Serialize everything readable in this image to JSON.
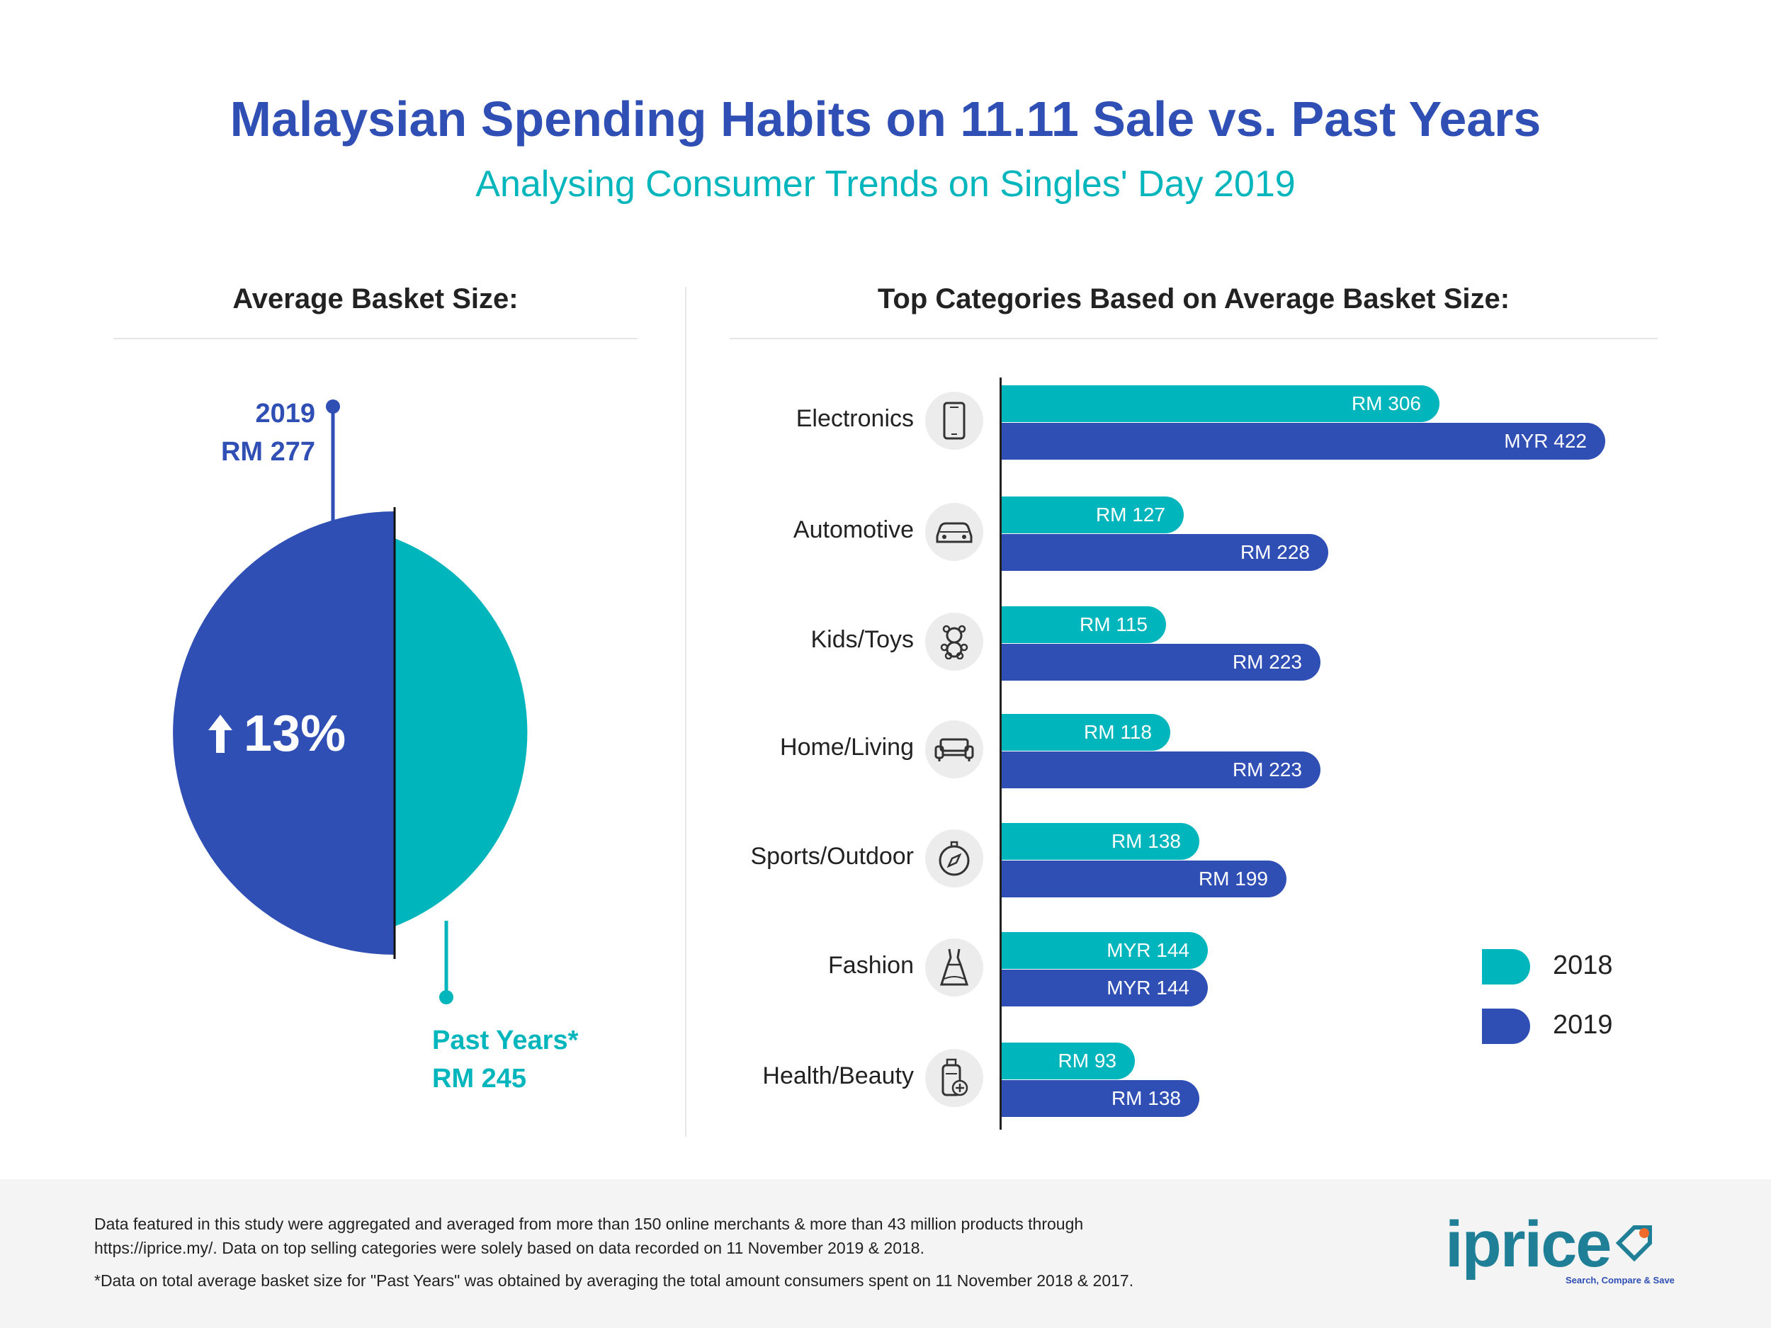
{
  "header": {
    "title": "Malaysian Spending Habits on 11.11 Sale vs. Past Years",
    "subtitle": "Analysing Consumer Trends on Singles' Day 2019"
  },
  "colors": {
    "teal": "#00b5bc",
    "blue": "#2f4fb5",
    "dark": "#222222"
  },
  "basket": {
    "heading": "Average Basket Size:",
    "label_2019_year": "2019",
    "label_2019_value": "RM 277",
    "label_past_year": "Past Years*",
    "label_past_value": "RM 245",
    "growth_text": "13%",
    "growth_icon": "arrow-up-icon"
  },
  "categories_section": {
    "heading": "Top Categories Based on Average Basket Size:"
  },
  "chart_data": [
    {
      "type": "pie",
      "title": "Average Basket Size:",
      "slices": [
        {
          "name": "2019",
          "label": "RM 277",
          "value": 277,
          "color": "#2f4fb5"
        },
        {
          "name": "Past Years*",
          "label": "RM 245",
          "value": 245,
          "color": "#00b5bc"
        }
      ],
      "annotation": "13%"
    },
    {
      "type": "bar",
      "orientation": "horizontal",
      "title": "Top Categories Based on Average Basket Size:",
      "categories": [
        "Electronics",
        "Automotive",
        "Kids/Toys",
        "Home/Living",
        "Sports/Outdoor",
        "Fashion",
        "Health/Beauty"
      ],
      "icons": [
        "smartphone-icon",
        "car-icon",
        "teddy-bear-icon",
        "sofa-icon",
        "compass-icon",
        "dress-icon",
        "lotion-bottle-icon"
      ],
      "series": [
        {
          "name": "2018",
          "color": "#00b5bc",
          "values": [
            306,
            127,
            115,
            118,
            138,
            144,
            93
          ],
          "labels": [
            "RM 306",
            "RM 127",
            "RM 115",
            "RM 118",
            "RM 138",
            "MYR 144",
            "RM 93"
          ]
        },
        {
          "name": "2019",
          "color": "#2f4fb5",
          "values": [
            422,
            228,
            223,
            223,
            199,
            144,
            138
          ],
          "labels": [
            "MYR 422",
            "RM 228",
            "RM 223",
            "RM 223",
            "RM 199",
            "MYR 144",
            "RM 138"
          ]
        }
      ],
      "legend": "bottom-right"
    }
  ],
  "footer": {
    "note_line1": "Data featured in this study were aggregated and averaged from more than 150 online merchants & more than 43 million products through",
    "note_line2": "https://iprice.my/. Data on top selling categories were solely based on data recorded on 11 November 2019 & 2018.",
    "note_line3": "*Data on total average basket size for \"Past Years\" was obtained by averaging the total amount consumers spent on 11 November 2018 & 2017.",
    "logo_text": "iprice",
    "logo_tagline": "Search, Compare & Save"
  }
}
